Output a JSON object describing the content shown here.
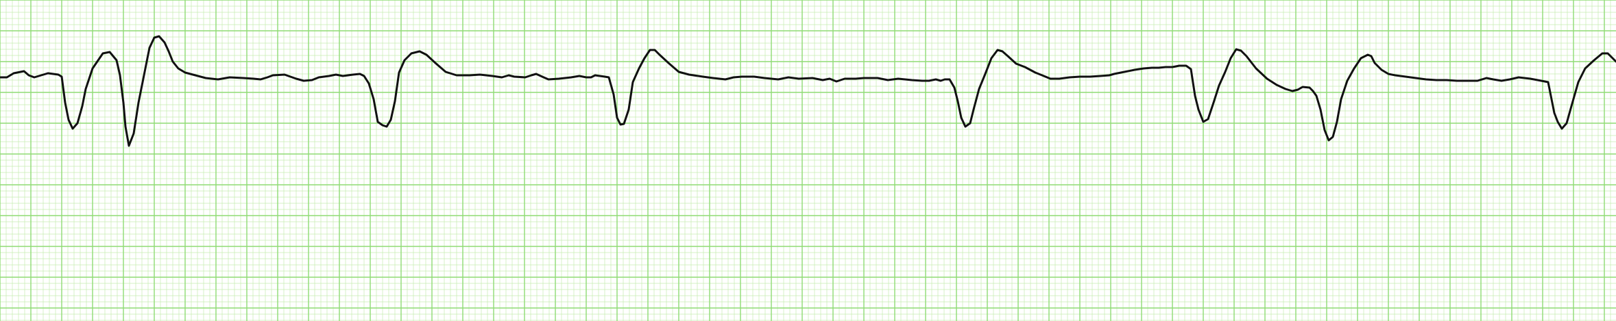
{
  "chart_data": {
    "type": "line",
    "title": "",
    "xlabel": "",
    "ylabel": "",
    "grid": true,
    "colors": {
      "paper": "#ffffff",
      "grid_minor": "#c6ecb0",
      "grid_major": "#8fdc74",
      "trace": "#111111"
    },
    "series": [
      {
        "values": [
          [
            0,
            113
          ],
          [
            10,
            113
          ],
          [
            20,
            107
          ],
          [
            35,
            104
          ],
          [
            42,
            110
          ],
          [
            50,
            113
          ],
          [
            60,
            110
          ],
          [
            70,
            107
          ],
          [
            85,
            109
          ],
          [
            90,
            112
          ],
          [
            95,
            150
          ],
          [
            100,
            175
          ],
          [
            106,
            188
          ],
          [
            113,
            180
          ],
          [
            120,
            155
          ],
          [
            125,
            130
          ],
          [
            135,
            100
          ],
          [
            150,
            78
          ],
          [
            160,
            76
          ],
          [
            170,
            88
          ],
          [
            175,
            110
          ],
          [
            180,
            150
          ],
          [
            183,
            185
          ],
          [
            188,
            213
          ],
          [
            195,
            195
          ],
          [
            202,
            150
          ],
          [
            210,
            110
          ],
          [
            218,
            70
          ],
          [
            225,
            55
          ],
          [
            232,
            53
          ],
          [
            240,
            62
          ],
          [
            246,
            75
          ],
          [
            252,
            90
          ],
          [
            260,
            100
          ],
          [
            270,
            106
          ],
          [
            285,
            110
          ],
          [
            300,
            114
          ],
          [
            318,
            116
          ],
          [
            335,
            113
          ],
          [
            355,
            114
          ],
          [
            370,
            115
          ],
          [
            380,
            116
          ],
          [
            390,
            113
          ],
          [
            398,
            110
          ],
          [
            415,
            109
          ],
          [
            432,
            115
          ],
          [
            443,
            118
          ],
          [
            455,
            117
          ],
          [
            465,
            113
          ],
          [
            480,
            111
          ],
          [
            490,
            109
          ],
          [
            500,
            111
          ],
          [
            515,
            109
          ],
          [
            525,
            108
          ],
          [
            531,
            111
          ],
          [
            538,
            122
          ],
          [
            545,
            145
          ],
          [
            551,
            178
          ],
          [
            558,
            183
          ],
          [
            564,
            185
          ],
          [
            570,
            175
          ],
          [
            576,
            148
          ],
          [
            582,
            106
          ],
          [
            590,
            88
          ],
          [
            600,
            78
          ],
          [
            612,
            75
          ],
          [
            622,
            80
          ],
          [
            635,
            92
          ],
          [
            650,
            105
          ],
          [
            666,
            110
          ],
          [
            685,
            110
          ],
          [
            700,
            109
          ],
          [
            718,
            111
          ],
          [
            732,
            113
          ],
          [
            742,
            110
          ],
          [
            750,
            112
          ],
          [
            766,
            113
          ],
          [
            775,
            110
          ],
          [
            782,
            108
          ],
          [
            793,
            113
          ],
          [
            800,
            116
          ],
          [
            815,
            115
          ],
          [
            833,
            113
          ],
          [
            845,
            111
          ],
          [
            855,
            113
          ],
          [
            862,
            113
          ],
          [
            868,
            110
          ],
          [
            875,
            111
          ],
          [
            882,
            112
          ],
          [
            888,
            113
          ],
          [
            895,
            138
          ],
          [
            900,
            172
          ],
          [
            905,
            182
          ],
          [
            910,
            181
          ],
          [
            917,
            160
          ],
          [
            923,
            120
          ],
          [
            932,
            100
          ],
          [
            940,
            85
          ],
          [
            948,
            73
          ],
          [
            955,
            73
          ],
          [
            962,
            80
          ],
          [
            975,
            92
          ],
          [
            990,
            105
          ],
          [
            1005,
            109
          ],
          [
            1025,
            112
          ],
          [
            1040,
            114
          ],
          [
            1058,
            116
          ],
          [
            1070,
            113
          ],
          [
            1082,
            112
          ],
          [
            1100,
            112
          ],
          [
            1115,
            114
          ],
          [
            1135,
            116
          ],
          [
            1150,
            113
          ],
          [
            1165,
            115
          ],
          [
            1185,
            114
          ],
          [
            1200,
            117
          ],
          [
            1210,
            115
          ],
          [
            1220,
            119
          ],
          [
            1232,
            115
          ],
          [
            1248,
            115
          ],
          [
            1260,
            114
          ],
          [
            1280,
            114
          ],
          [
            1295,
            117
          ],
          [
            1310,
            115
          ],
          [
            1330,
            117
          ],
          [
            1345,
            118
          ],
          [
            1355,
            118
          ],
          [
            1365,
            116
          ],
          [
            1372,
            118
          ],
          [
            1378,
            116
          ],
          [
            1385,
            116
          ],
          [
            1392,
            128
          ],
          [
            1397,
            148
          ],
          [
            1402,
            172
          ],
          [
            1408,
            185
          ],
          [
            1415,
            180
          ],
          [
            1420,
            160
          ],
          [
            1428,
            130
          ],
          [
            1437,
            108
          ],
          [
            1446,
            85
          ],
          [
            1455,
            73
          ],
          [
            1462,
            75
          ],
          [
            1470,
            82
          ],
          [
            1482,
            93
          ],
          [
            1495,
            98
          ],
          [
            1510,
            106
          ],
          [
            1520,
            110
          ],
          [
            1532,
            115
          ],
          [
            1545,
            115
          ],
          [
            1560,
            113
          ],
          [
            1575,
            112
          ],
          [
            1590,
            112
          ],
          [
            1605,
            111
          ],
          [
            1618,
            110
          ],
          [
            1625,
            108
          ],
          [
            1640,
            105
          ],
          [
            1655,
            102
          ],
          [
            1668,
            100
          ],
          [
            1680,
            99
          ],
          [
            1690,
            99
          ],
          [
            1700,
            98
          ],
          [
            1710,
            98
          ],
          [
            1720,
            96
          ],
          [
            1730,
            96
          ],
          [
            1737,
            101
          ],
          [
            1743,
            140
          ],
          [
            1748,
            160
          ],
          [
            1755,
            178
          ],
          [
            1762,
            174
          ],
          [
            1770,
            150
          ],
          [
            1778,
            125
          ],
          [
            1787,
            105
          ],
          [
            1795,
            85
          ],
          [
            1803,
            72
          ],
          [
            1810,
            74
          ],
          [
            1818,
            82
          ],
          [
            1832,
            100
          ],
          [
            1848,
            115
          ],
          [
            1862,
            124
          ],
          [
            1875,
            130
          ],
          [
            1885,
            133
          ],
          [
            1893,
            131
          ],
          [
            1900,
            127
          ],
          [
            1910,
            128
          ],
          [
            1915,
            133
          ],
          [
            1920,
            140
          ],
          [
            1926,
            160
          ],
          [
            1932,
            190
          ],
          [
            1938,
            205
          ],
          [
            1944,
            200
          ],
          [
            1950,
            178
          ],
          [
            1956,
            145
          ],
          [
            1965,
            118
          ],
          [
            1975,
            100
          ],
          [
            1985,
            85
          ],
          [
            1995,
            80
          ],
          [
            2000,
            82
          ],
          [
            2005,
            92
          ],
          [
            2015,
            102
          ],
          [
            2025,
            108
          ],
          [
            2035,
            110
          ],
          [
            2050,
            112
          ],
          [
            2065,
            114
          ],
          [
            2080,
            116
          ],
          [
            2095,
            117
          ],
          [
            2110,
            117
          ],
          [
            2125,
            118
          ],
          [
            2140,
            118
          ],
          [
            2155,
            118
          ],
          [
            2168,
            114
          ],
          [
            2178,
            116
          ],
          [
            2190,
            118
          ],
          [
            2202,
            116
          ],
          [
            2215,
            113
          ],
          [
            2232,
            115
          ],
          [
            2248,
            118
          ],
          [
            2258,
            120
          ],
          [
            2262,
            140
          ],
          [
            2267,
            165
          ],
          [
            2272,
            178
          ],
          [
            2278,
            188
          ],
          [
            2285,
            180
          ],
          [
            2292,
            155
          ],
          [
            2302,
            120
          ],
          [
            2312,
            100
          ],
          [
            2325,
            88
          ],
          [
            2337,
            78
          ],
          [
            2345,
            78
          ],
          [
            2357,
            90
          ]
        ]
      }
    ]
  }
}
